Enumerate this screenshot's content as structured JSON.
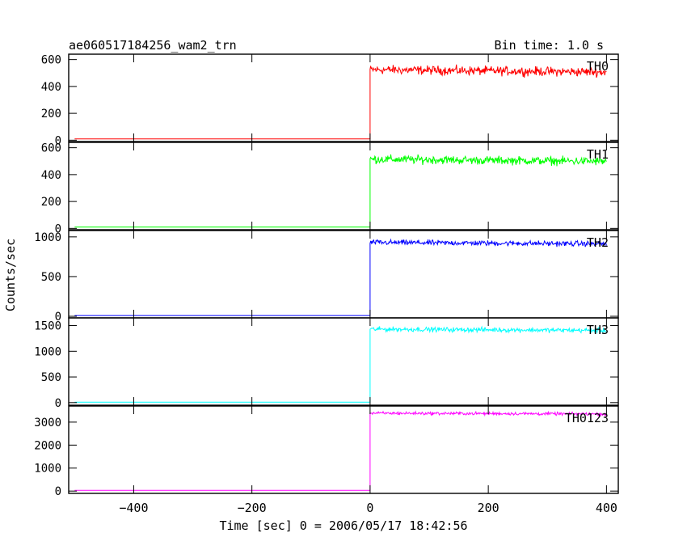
{
  "chart_data": {
    "type": "line",
    "title": "ae060517184256_wam2_trn",
    "bin_time_label": "Bin time: 1.0 s",
    "xlabel": "Time [sec] 0 = 2006/05/17 18:42:56",
    "ylabel": "Counts/sec",
    "xlim": [
      -510,
      420
    ],
    "x_ticks": [
      -400,
      -200,
      0,
      200,
      400
    ],
    "x_tick_labels": [
      "−400",
      "−200",
      "0",
      "200",
      "400"
    ],
    "step_time": 0,
    "x_range": [
      -500,
      400
    ],
    "grid": false,
    "panels": [
      {
        "name": "TH0",
        "color": "#ff0000",
        "ylim": [
          -10,
          640
        ],
        "y_ticks": [
          0,
          200,
          400,
          600
        ],
        "y_tick_labels": [
          "0",
          "200",
          "400",
          "600"
        ],
        "baseline": 10,
        "level": 525,
        "noise": 30
      },
      {
        "name": "TH1",
        "color": "#00ff00",
        "ylim": [
          -10,
          640
        ],
        "y_ticks": [
          0,
          200,
          400,
          600
        ],
        "y_tick_labels": [
          "0",
          "200",
          "400",
          "600"
        ],
        "baseline": 10,
        "level": 515,
        "noise": 28
      },
      {
        "name": "TH2",
        "color": "#0000ff",
        "ylim": [
          -20,
          1080
        ],
        "y_ticks": [
          0,
          500,
          1000
        ],
        "y_tick_labels": [
          "0",
          "500",
          "1000"
        ],
        "baseline": 10,
        "level": 930,
        "noise": 30
      },
      {
        "name": "TH3",
        "color": "#00ffff",
        "ylim": [
          -50,
          1650
        ],
        "y_ticks": [
          0,
          500,
          1000,
          1500
        ],
        "y_tick_labels": [
          "0",
          "500",
          "1000",
          "1500"
        ],
        "baseline": 10,
        "level": 1430,
        "noise": 40
      },
      {
        "name": "TH0123",
        "color": "#ff00ff",
        "ylim": [
          -100,
          3700
        ],
        "y_ticks": [
          0,
          1000,
          2000,
          3000
        ],
        "y_tick_labels": [
          "0",
          "1000",
          "2000",
          "3000"
        ],
        "baseline": 30,
        "level": 3390,
        "noise": 60
      }
    ]
  }
}
